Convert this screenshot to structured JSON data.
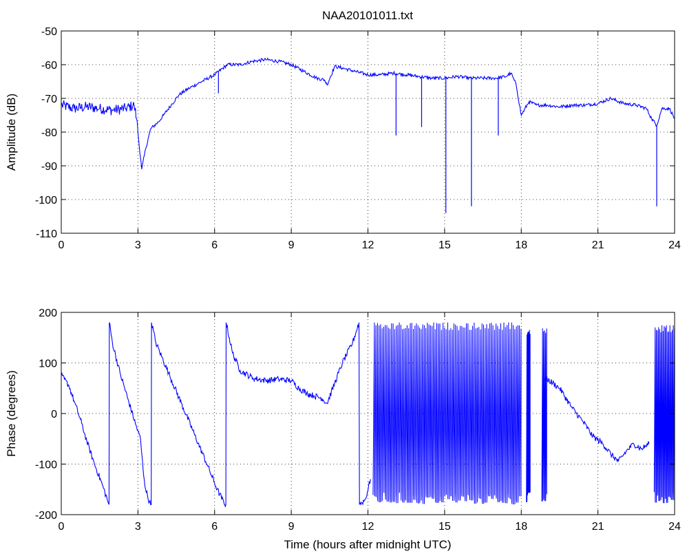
{
  "figure": {
    "title": "NAA20101011.txt",
    "xlabel": "Time (hours after midnight UTC)"
  },
  "chart_data": [
    {
      "type": "line",
      "title": "NAA20101011.txt",
      "xlabel": "",
      "ylabel": "Amplitude (dB)",
      "xlim": [
        0,
        24
      ],
      "ylim": [
        -110,
        -50
      ],
      "xticks": [
        0,
        3,
        6,
        9,
        12,
        15,
        18,
        21,
        24
      ],
      "yticks": [
        -110,
        -100,
        -90,
        -80,
        -70,
        -60,
        -50
      ],
      "grid": true,
      "color": "#0000ff",
      "series": [
        {
          "x": [
            0,
            0.5,
            1,
            1.5,
            2,
            2.5,
            2.85,
            2.95,
            3.05,
            3.15,
            3.3,
            3.5,
            3.8,
            4,
            4.3,
            4.6,
            5,
            5.5,
            6,
            6.5,
            7,
            7.5,
            8,
            8.5,
            9,
            9.5,
            10,
            10.3,
            10.4,
            10.7,
            11,
            11.5,
            12,
            12.5,
            13,
            13.5,
            14,
            14.5,
            15,
            15.5,
            16,
            16.5,
            17,
            17.4,
            17.6,
            17.8,
            18,
            18.3,
            18.6,
            19,
            19.5,
            20,
            20.5,
            21,
            21.5,
            22,
            22.5,
            22.9,
            23.1,
            23.3,
            23.5,
            23.8,
            24
          ],
          "y": [
            -72,
            -73,
            -72.5,
            -73,
            -73.5,
            -73,
            -72,
            -76,
            -84,
            -91,
            -85,
            -79,
            -77,
            -75,
            -72,
            -69,
            -67,
            -65,
            -63,
            -60,
            -60,
            -59,
            -58.5,
            -59,
            -60,
            -62,
            -64,
            -64.5,
            -66,
            -60.5,
            -61,
            -62,
            -63,
            -63,
            -62.5,
            -63,
            -63.5,
            -64,
            -64,
            -63.5,
            -64,
            -64,
            -64,
            -63.5,
            -62.5,
            -66,
            -75,
            -71,
            -72,
            -72,
            -72.5,
            -72,
            -72,
            -71.5,
            -70,
            -71.5,
            -72,
            -73,
            -76,
            -78,
            -73,
            -73,
            -76
          ]
        }
      ],
      "spikes": [
        {
          "x": 6.15,
          "y": -68.5
        },
        {
          "x": 13.1,
          "y": -81
        },
        {
          "x": 14.1,
          "y": -78.5
        },
        {
          "x": 15.05,
          "y": -104
        },
        {
          "x": 16.05,
          "y": -102
        },
        {
          "x": 17.1,
          "y": -81
        },
        {
          "x": 23.3,
          "y": -102
        }
      ]
    },
    {
      "type": "line",
      "title": "",
      "xlabel": "Time (hours after midnight UTC)",
      "ylabel": "Phase (degrees)",
      "xlim": [
        0,
        24
      ],
      "ylim": [
        -200,
        200
      ],
      "xticks": [
        0,
        3,
        6,
        9,
        12,
        15,
        18,
        21,
        24
      ],
      "yticks": [
        -200,
        -100,
        0,
        100,
        200
      ],
      "grid": true,
      "color": "#0000ff",
      "series": [
        {
          "x": [
            0,
            0.3,
            0.5,
            0.8,
            1.0,
            1.3,
            1.6,
            1.8,
            1.87,
            1.88,
            2.0,
            2.3,
            2.6,
            2.9,
            3.1,
            3.2,
            3.3,
            3.45,
            3.52,
            3.53,
            3.7,
            4.2,
            4.7,
            5.2,
            5.7,
            6.1,
            6.4,
            6.44,
            6.45,
            6.7,
            7.0,
            7.5,
            8.0,
            8.5,
            9.0,
            9.3,
            9.6,
            9.9,
            10.2,
            10.4,
            10.7,
            11.0,
            11.4,
            11.65,
            11.67,
            11.9,
            12.1
          ],
          "y": [
            75,
            55,
            25,
            -20,
            -55,
            -100,
            -140,
            -170,
            -180,
            180,
            140,
            80,
            30,
            -20,
            -50,
            -110,
            -150,
            -175,
            -180,
            180,
            140,
            80,
            20,
            -40,
            -100,
            -150,
            -180,
            -180,
            180,
            120,
            85,
            70,
            65,
            68,
            65,
            50,
            40,
            35,
            30,
            20,
            60,
            100,
            140,
            180,
            -180,
            -170,
            -130
          ]
        },
        {
          "x": [
            18.9,
            19.1,
            19.5,
            20.0,
            20.4,
            20.8,
            21.2,
            21.5,
            21.8,
            22.1,
            22.4,
            22.7,
            23.0
          ],
          "y": [
            70,
            65,
            50,
            10,
            -15,
            -45,
            -60,
            -80,
            -95,
            -75,
            -60,
            -70,
            -60
          ]
        }
      ],
      "wrap_regions": [
        {
          "x": [
            12.2,
            18.0
          ],
          "ylim": [
            -180,
            180
          ],
          "cycles": 95
        },
        {
          "x": [
            18.2,
            18.35
          ],
          "ylim": [
            -180,
            170
          ],
          "cycles": 6
        },
        {
          "x": [
            18.8,
            19.0
          ],
          "ylim": [
            -180,
            170
          ],
          "cycles": 5
        },
        {
          "x": [
            23.2,
            24.0
          ],
          "ylim": [
            -180,
            175
          ],
          "cycles": 18
        }
      ]
    }
  ]
}
